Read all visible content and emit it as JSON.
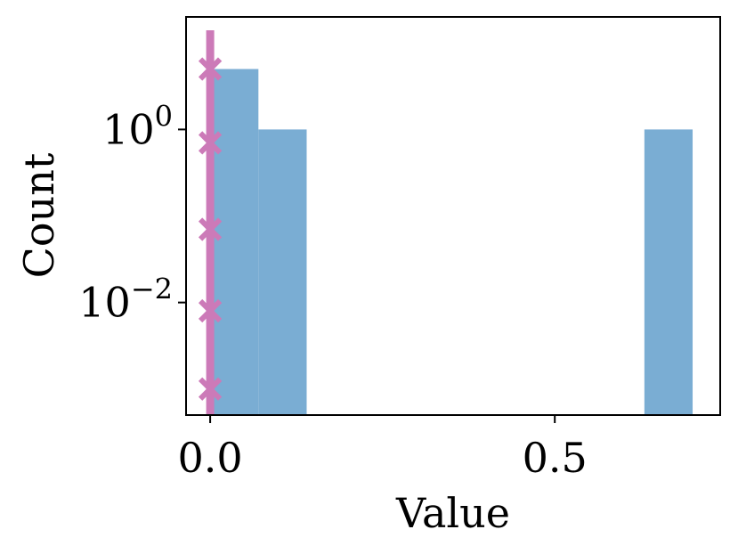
{
  "chart_data": {
    "type": "bar",
    "subtype": "histogram",
    "title": "",
    "xlabel": "Value",
    "ylabel": "Count",
    "y_scale": "log",
    "xlim": [
      -0.035,
      0.74
    ],
    "ylim": [
      0.0005,
      20
    ],
    "grid": false,
    "bar_color": "#7aadd3",
    "bins": [
      {
        "x0": 0.0,
        "x1": 0.07,
        "count": 5
      },
      {
        "x0": 0.07,
        "x1": 0.14,
        "count": 1
      },
      {
        "x0": 0.63,
        "x1": 0.7,
        "count": 1
      }
    ],
    "marker_line": {
      "x": 0.0,
      "color": "#cc7ab8",
      "marker": "x",
      "marker_y": [
        5,
        0.7,
        0.07,
        0.008,
        0.001
      ]
    },
    "x_ticks": [
      {
        "value": 0.0,
        "label": "0.0"
      },
      {
        "value": 0.5,
        "label": "0.5"
      }
    ],
    "y_ticks": [
      {
        "value": 1,
        "base": "10",
        "exp": "0"
      },
      {
        "value": 0.01,
        "base": "10",
        "exp": "−2"
      }
    ]
  }
}
